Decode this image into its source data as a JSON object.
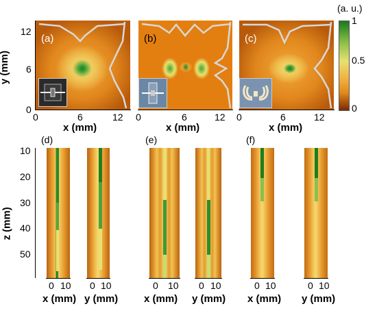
{
  "panels_top": [
    {
      "label": "(a)"
    },
    {
      "label": "(b)"
    },
    {
      "label": "(c)"
    }
  ],
  "panels_bottom": [
    {
      "label": "(d)"
    },
    {
      "label": "(e)"
    },
    {
      "label": "(f)"
    }
  ],
  "axes": {
    "top_x_label": "x (mm)",
    "top_y_label": "y (mm)",
    "top_x_ticks": [
      "0",
      "6",
      "12"
    ],
    "top_y_ticks": [
      "0",
      "6",
      "12"
    ],
    "bottom_z_label": "z (mm)",
    "bottom_z_ticks": [
      "10",
      "20",
      "30",
      "40",
      "50"
    ],
    "bottom_ticks": [
      "0",
      "10"
    ],
    "bottom_x_label": "x (mm)",
    "bottom_y_label": "y (mm)"
  },
  "colorbar": {
    "unit": "(a. u.)",
    "ticks": [
      "1",
      "0.5",
      "0"
    ],
    "colors": [
      "#1b7a1f",
      "#e6e07a",
      "#e38a1c",
      "#7a2b05"
    ]
  }
}
